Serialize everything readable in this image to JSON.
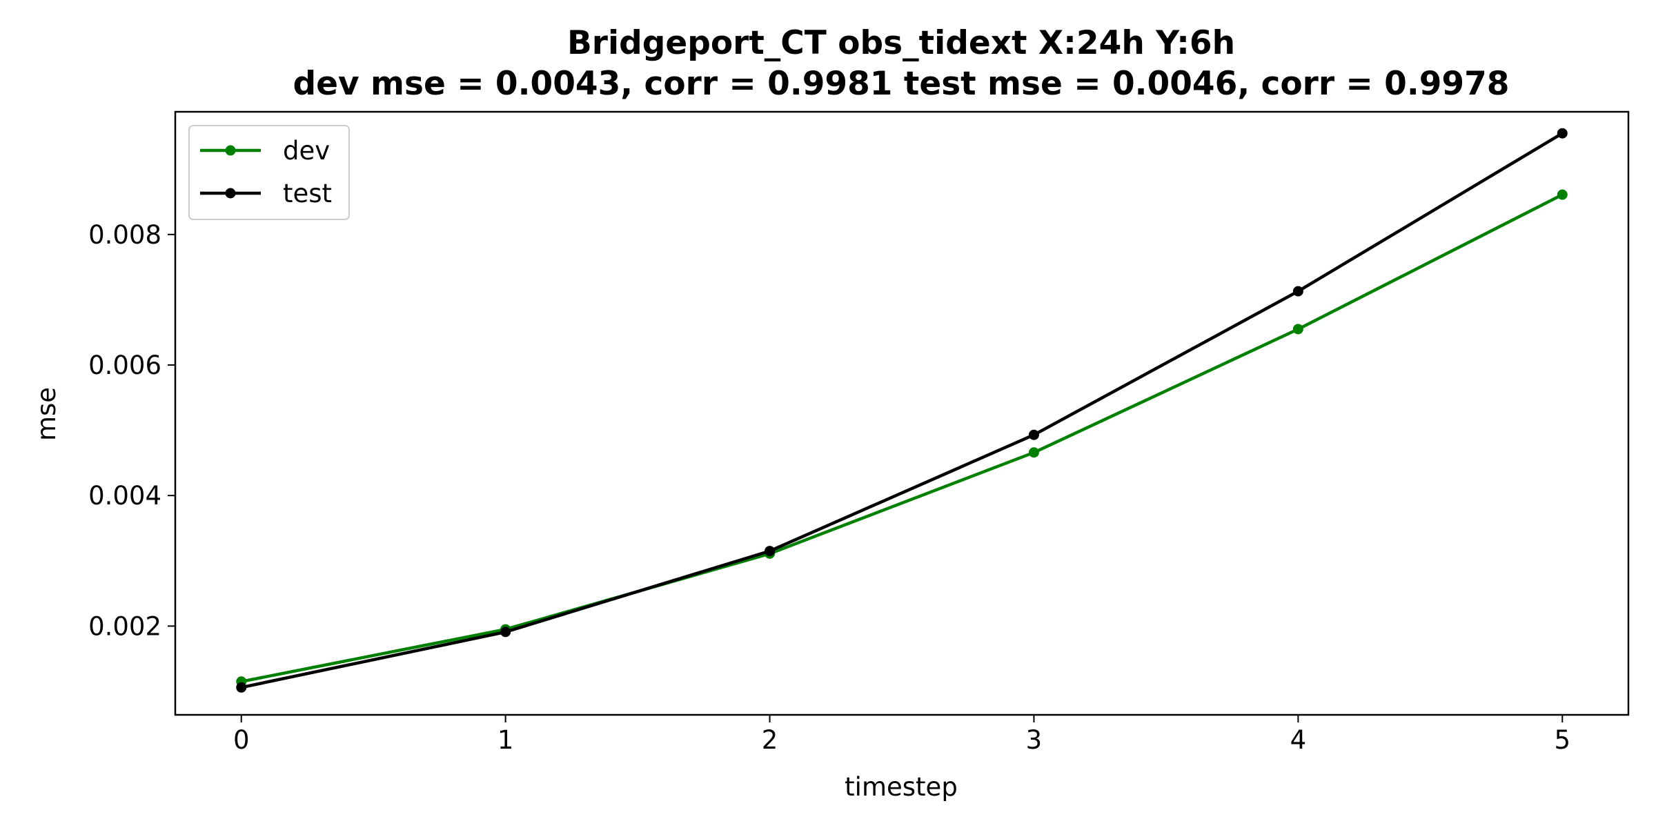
{
  "chart_data": {
    "type": "line",
    "title": "Bridgeport_CT   obs_tidext   X:24h   Y:6h",
    "subtitle": "dev mse = 0.0043, corr = 0.9981   test mse = 0.0046, corr = 0.9978",
    "xlabel": "timestep",
    "ylabel": "mse",
    "x": [
      0,
      1,
      2,
      3,
      4,
      5
    ],
    "xlim": [
      -0.25,
      5.25
    ],
    "ylim": [
      0.00064,
      0.00988
    ],
    "xticks": [
      0,
      1,
      2,
      3,
      4,
      5
    ],
    "xtick_labels": [
      "0",
      "1",
      "2",
      "3",
      "4",
      "5"
    ],
    "yticks": [
      0.002,
      0.004,
      0.006,
      0.008
    ],
    "ytick_labels": [
      "0.002",
      "0.004",
      "0.006",
      "0.008"
    ],
    "grid": false,
    "legend_position": "upper-left",
    "series": [
      {
        "name": "dev",
        "color": "#008000",
        "values": [
          0.00115,
          0.00195,
          0.00311,
          0.00466,
          0.00655,
          0.00861
        ]
      },
      {
        "name": "test",
        "color": "#000000",
        "values": [
          0.00106,
          0.00191,
          0.00315,
          0.00493,
          0.00713,
          0.00955
        ]
      }
    ]
  }
}
